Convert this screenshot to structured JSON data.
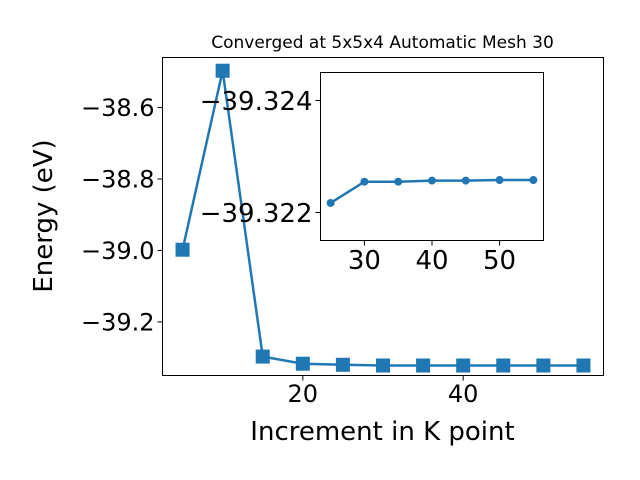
{
  "chart_data": [
    {
      "type": "line",
      "title": "Converged at 5x5x4 Automatic Mesh 30",
      "xlabel": "Increment in K point",
      "ylabel": "Energy (eV)",
      "xlim": [
        2.5,
        57.5
      ],
      "ylim": [
        -39.35,
        -38.46
      ],
      "xticks": [
        20,
        40
      ],
      "xtick_labels": [
        "20",
        "40"
      ],
      "yticks": [
        -39.2,
        -39.0,
        -38.8,
        -38.6
      ],
      "ytick_labels": [
        "−39.2",
        "−39.0",
        "−38.8",
        "−38.6"
      ],
      "marker": "square",
      "color": "#1f77b4",
      "series": [
        {
          "x": [
            5,
            10,
            15,
            20,
            25,
            30,
            35,
            40,
            45,
            50,
            55
          ],
          "values": [
            -38.998,
            -38.497,
            -39.297,
            -39.317,
            -39.32,
            -39.322,
            -39.322,
            -39.322,
            -39.322,
            -39.322,
            -39.322
          ]
        }
      ]
    },
    {
      "type": "line",
      "title": "",
      "xlabel": "",
      "ylabel": "",
      "xlim": [
        23.5,
        56.5
      ],
      "ylim": [
        -39.3215,
        -39.3245
      ],
      "xticks": [
        30,
        40,
        50
      ],
      "xtick_labels": [
        "30",
        "40",
        "50"
      ],
      "yticks": [
        -39.324,
        -39.322
      ],
      "ytick_labels": [
        "−39.324",
        "−39.322"
      ],
      "marker": "circle",
      "color": "#1f77b4",
      "series": [
        {
          "x": [
            25,
            30,
            35,
            40,
            45,
            50,
            55
          ],
          "values": [
            -39.32217,
            -39.32255,
            -39.32255,
            -39.32257,
            -39.32257,
            -39.32258,
            -39.32258
          ]
        }
      ]
    }
  ]
}
